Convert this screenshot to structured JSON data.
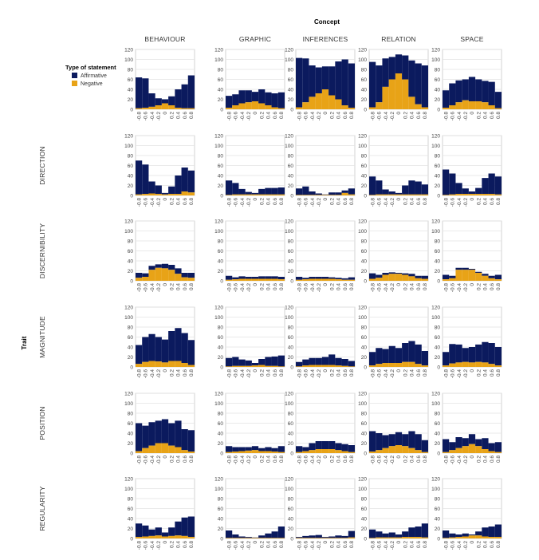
{
  "chart_data": {
    "type": "bar",
    "stacked": true,
    "facet_column_title": "Concept",
    "facet_row_title": "Trait",
    "columns": [
      "BEHAVIOUR",
      "GRAPHIC",
      "INFERENCES",
      "RELATION",
      "SPACE"
    ],
    "rows": [
      "",
      "DIRECTION",
      "DISCERNIBILITY",
      "MAGNITUDE",
      "POSITION",
      "REGULARITY"
    ],
    "categories": [
      "-0.8",
      "-0.6",
      "-0.4",
      "-0.2",
      "0",
      "0.2",
      "0.4",
      "0.6",
      "0.8"
    ],
    "ylim": [
      0,
      120
    ],
    "y_ticks": [
      0,
      20,
      40,
      60,
      80,
      100,
      120
    ],
    "legend": {
      "title": "Type of statement",
      "placement": "top-left",
      "entries": [
        {
          "name": "Affirmative",
          "color": "#0b1a5e"
        },
        {
          "name": "Negative",
          "color": "#e8a317"
        }
      ]
    },
    "series_colors": {
      "Affirmative": "#0b1a5e",
      "Negative": "#e8a317"
    },
    "cells": [
      {
        "row": 0,
        "col": 0,
        "total": [
          64,
          62,
          32,
          22,
          20,
          26,
          40,
          50,
          68
        ],
        "negative": [
          2,
          3,
          5,
          8,
          12,
          8,
          3,
          2,
          2
        ]
      },
      {
        "row": 0,
        "col": 1,
        "total": [
          27,
          30,
          38,
          38,
          35,
          40,
          34,
          32,
          34
        ],
        "negative": [
          3,
          8,
          12,
          14,
          16,
          12,
          8,
          4,
          2
        ]
      },
      {
        "row": 0,
        "col": 2,
        "total": [
          103,
          102,
          88,
          84,
          86,
          86,
          96,
          100,
          92
        ],
        "negative": [
          4,
          14,
          25,
          32,
          40,
          28,
          20,
          8,
          3
        ]
      },
      {
        "row": 0,
        "col": 3,
        "total": [
          95,
          88,
          102,
          105,
          110,
          108,
          98,
          92,
          88
        ],
        "negative": [
          4,
          14,
          45,
          60,
          72,
          60,
          25,
          10,
          4
        ]
      },
      {
        "row": 0,
        "col": 4,
        "total": [
          38,
          52,
          58,
          60,
          65,
          60,
          57,
          55,
          35
        ],
        "negative": [
          3,
          8,
          14,
          18,
          16,
          16,
          14,
          8,
          2
        ]
      },
      {
        "row": 1,
        "col": 0,
        "total": [
          70,
          62,
          28,
          20,
          5,
          18,
          40,
          56,
          50
        ],
        "negative": [
          2,
          3,
          4,
          3,
          2,
          3,
          3,
          8,
          6
        ]
      },
      {
        "row": 1,
        "col": 1,
        "total": [
          30,
          25,
          13,
          7,
          5,
          13,
          15,
          15,
          16
        ],
        "negative": [
          1,
          2,
          2,
          2,
          2,
          2,
          2,
          2,
          2
        ]
      },
      {
        "row": 1,
        "col": 2,
        "total": [
          14,
          18,
          8,
          4,
          2,
          6,
          6,
          10,
          14
        ],
        "negative": [
          1,
          1,
          1,
          1,
          1,
          1,
          1,
          5,
          2
        ]
      },
      {
        "row": 1,
        "col": 3,
        "total": [
          38,
          30,
          12,
          8,
          5,
          20,
          30,
          28,
          22
        ],
        "negative": [
          1,
          2,
          2,
          2,
          2,
          2,
          2,
          2,
          2
        ]
      },
      {
        "row": 1,
        "col": 4,
        "total": [
          52,
          44,
          25,
          14,
          8,
          15,
          35,
          44,
          38
        ],
        "negative": [
          1,
          2,
          3,
          3,
          3,
          3,
          3,
          3,
          2
        ]
      },
      {
        "row": 2,
        "col": 0,
        "total": [
          16,
          15,
          30,
          33,
          34,
          32,
          25,
          16,
          16
        ],
        "negative": [
          6,
          8,
          22,
          26,
          25,
          22,
          14,
          7,
          6
        ]
      },
      {
        "row": 2,
        "col": 1,
        "total": [
          10,
          7,
          9,
          8,
          8,
          9,
          9,
          9,
          8
        ],
        "negative": [
          2,
          3,
          4,
          4,
          4,
          4,
          4,
          4,
          3
        ]
      },
      {
        "row": 2,
        "col": 2,
        "total": [
          8,
          6,
          8,
          8,
          8,
          7,
          6,
          5,
          7
        ],
        "negative": [
          2,
          3,
          4,
          4,
          4,
          4,
          3,
          2,
          2
        ]
      },
      {
        "row": 2,
        "col": 3,
        "total": [
          15,
          12,
          16,
          17,
          16,
          15,
          14,
          10,
          10
        ],
        "negative": [
          4,
          6,
          12,
          14,
          14,
          12,
          9,
          5,
          4
        ]
      },
      {
        "row": 2,
        "col": 4,
        "total": [
          12,
          10,
          26,
          26,
          24,
          18,
          14,
          10,
          12
        ],
        "negative": [
          3,
          5,
          22,
          22,
          22,
          16,
          10,
          5,
          3
        ]
      },
      {
        "row": 3,
        "col": 0,
        "total": [
          44,
          60,
          66,
          60,
          55,
          72,
          78,
          68,
          54
        ],
        "negative": [
          6,
          10,
          12,
          11,
          9,
          12,
          12,
          8,
          4
        ]
      },
      {
        "row": 3,
        "col": 1,
        "total": [
          18,
          20,
          15,
          13,
          8,
          16,
          20,
          21,
          23
        ],
        "negative": [
          1,
          2,
          2,
          2,
          3,
          4,
          2,
          2,
          1
        ]
      },
      {
        "row": 3,
        "col": 2,
        "total": [
          10,
          15,
          18,
          18,
          20,
          25,
          18,
          16,
          12
        ],
        "negative": [
          1,
          3,
          4,
          4,
          4,
          4,
          3,
          2,
          1
        ]
      },
      {
        "row": 3,
        "col": 3,
        "total": [
          30,
          38,
          36,
          42,
          38,
          48,
          52,
          45,
          32
        ],
        "negative": [
          3,
          6,
          8,
          8,
          8,
          10,
          10,
          6,
          3
        ]
      },
      {
        "row": 3,
        "col": 4,
        "total": [
          30,
          46,
          45,
          38,
          40,
          45,
          50,
          48,
          40
        ],
        "negative": [
          3,
          7,
          9,
          10,
          9,
          10,
          9,
          6,
          3
        ]
      },
      {
        "row": 4,
        "col": 0,
        "total": [
          60,
          55,
          62,
          65,
          68,
          60,
          65,
          48,
          46
        ],
        "negative": [
          4,
          10,
          15,
          20,
          20,
          15,
          12,
          6,
          3
        ]
      },
      {
        "row": 4,
        "col": 1,
        "total": [
          14,
          12,
          12,
          12,
          14,
          10,
          12,
          10,
          14
        ],
        "negative": [
          2,
          3,
          4,
          5,
          6,
          4,
          4,
          3,
          2
        ]
      },
      {
        "row": 4,
        "col": 2,
        "total": [
          14,
          12,
          20,
          24,
          24,
          24,
          20,
          18,
          16
        ],
        "negative": [
          2,
          4,
          6,
          8,
          8,
          8,
          6,
          4,
          2
        ]
      },
      {
        "row": 4,
        "col": 3,
        "total": [
          44,
          40,
          36,
          38,
          42,
          38,
          44,
          38,
          26
        ],
        "negative": [
          3,
          6,
          10,
          14,
          16,
          14,
          10,
          6,
          2
        ]
      },
      {
        "row": 4,
        "col": 4,
        "total": [
          28,
          22,
          32,
          30,
          38,
          28,
          30,
          20,
          22
        ],
        "negative": [
          2,
          6,
          10,
          14,
          18,
          14,
          8,
          4,
          2
        ]
      },
      {
        "row": 5,
        "col": 0,
        "total": [
          30,
          26,
          18,
          22,
          12,
          22,
          34,
          42,
          44
        ],
        "negative": [
          3,
          4,
          5,
          6,
          4,
          5,
          6,
          5,
          3
        ]
      },
      {
        "row": 5,
        "col": 1,
        "total": [
          16,
          8,
          4,
          3,
          2,
          6,
          10,
          14,
          24
        ],
        "negative": [
          1,
          1,
          1,
          1,
          1,
          1,
          1,
          1,
          1
        ]
      },
      {
        "row": 5,
        "col": 2,
        "total": [
          3,
          5,
          6,
          7,
          3,
          4,
          6,
          5,
          15
        ],
        "negative": [
          1,
          1,
          1,
          1,
          1,
          1,
          1,
          1,
          2
        ]
      },
      {
        "row": 5,
        "col": 3,
        "total": [
          18,
          14,
          10,
          12,
          8,
          14,
          22,
          24,
          30
        ],
        "negative": [
          1,
          2,
          2,
          2,
          2,
          3,
          3,
          3,
          2
        ]
      },
      {
        "row": 5,
        "col": 4,
        "total": [
          16,
          10,
          8,
          10,
          8,
          14,
          22,
          24,
          28
        ],
        "negative": [
          1,
          2,
          3,
          4,
          6,
          6,
          4,
          3,
          3
        ]
      }
    ]
  }
}
